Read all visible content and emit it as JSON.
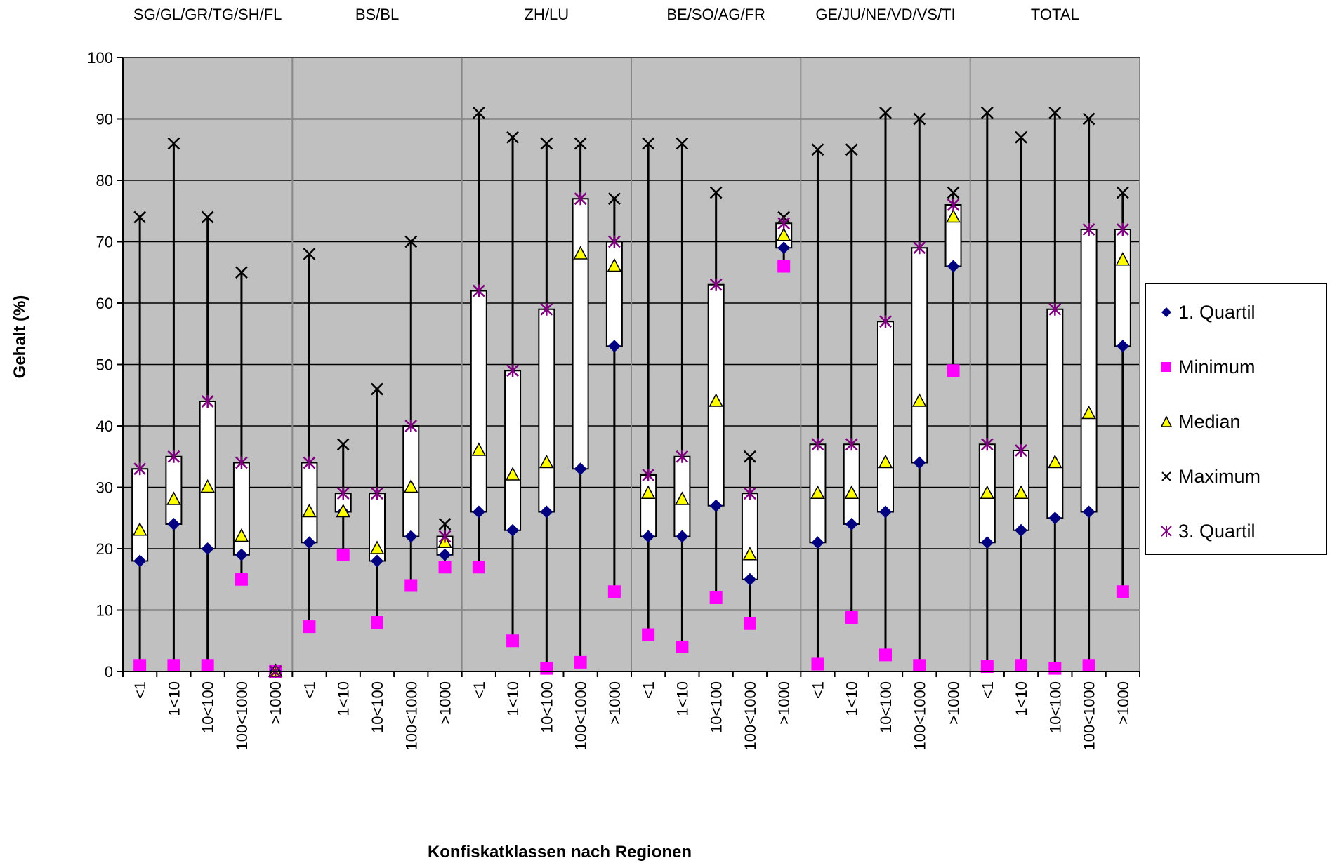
{
  "chart_data": {
    "type": "box",
    "title": "",
    "xlabel": "Konfiskatklassen nach Regionen",
    "ylabel": "Gehalt (%)",
    "ylim": [
      0,
      100
    ],
    "yticks": [
      0,
      10,
      20,
      30,
      40,
      50,
      60,
      70,
      80,
      90,
      100
    ],
    "grid": true,
    "legend_position": "right",
    "groups": [
      "SG/GL/GR/TG/SH/FL",
      "BS/BL",
      "ZH/LU",
      "BE/SO/AG/FR",
      "GE/JU/NE/VD/VS/TI",
      "TOTAL"
    ],
    "class_labels": [
      "<1",
      "1<10",
      "10<100",
      "100<1000",
      ">1000"
    ],
    "series": [
      {
        "name": "1. Quartil",
        "values": [
          18,
          24,
          20,
          19,
          0,
          21,
          26,
          18,
          22,
          19,
          26,
          23,
          26,
          33,
          53,
          22,
          22,
          27,
          15,
          69,
          21,
          24,
          26,
          34,
          66,
          21,
          23,
          25,
          26,
          53
        ]
      },
      {
        "name": "Minimum",
        "values": [
          1,
          1,
          1,
          15,
          0,
          7.3,
          19,
          8,
          14,
          17,
          17,
          5,
          0.5,
          1.5,
          13,
          6,
          4,
          12,
          7.8,
          66,
          1.2,
          8.8,
          2.7,
          1,
          49,
          0.8,
          1,
          0.5,
          1,
          13
        ]
      },
      {
        "name": "Median",
        "values": [
          23,
          28,
          30,
          22,
          0,
          26,
          26,
          20,
          30,
          21,
          36,
          32,
          34,
          68,
          66,
          29,
          28,
          44,
          19,
          71,
          29,
          29,
          34,
          44,
          74,
          29,
          29,
          34,
          42,
          67
        ]
      },
      {
        "name": "Maximum",
        "values": [
          74,
          86,
          74,
          65,
          0,
          68,
          37,
          46,
          70,
          24,
          91,
          87,
          86,
          86,
          77,
          86,
          86,
          78,
          35,
          74,
          85,
          85,
          91,
          90,
          78,
          91,
          87,
          91,
          90,
          78
        ]
      },
      {
        "name": "3. Quartil",
        "values": [
          33,
          35,
          44,
          34,
          0,
          34,
          29,
          29,
          40,
          22,
          62,
          49,
          59,
          77,
          70,
          32,
          35,
          63,
          29,
          73,
          37,
          37,
          57,
          69,
          76,
          37,
          36,
          59,
          72,
          72
        ]
      }
    ],
    "colors": {
      "quartile1": "#000080",
      "minimum": "#ff00ff",
      "median": "#ffff00",
      "maximum": "#000000",
      "quartile3": "#800080",
      "plot_background": "#c0c0c0"
    }
  }
}
